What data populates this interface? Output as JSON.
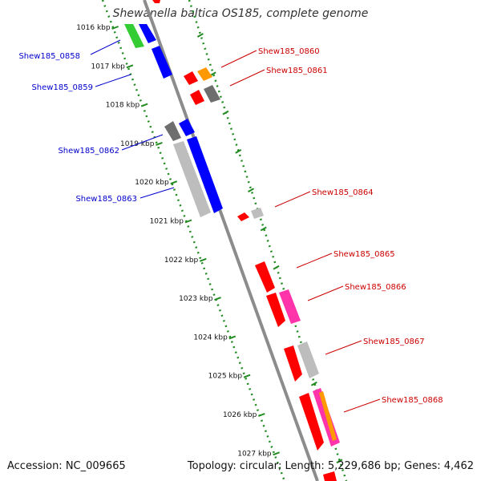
{
  "title": "Shewanella baltica OS185, complete genome",
  "accession": "Accession: NC_009665",
  "summary": "Topology: circular; Length: 5,229,686 bp; Genes: 4,462",
  "colors": {
    "backbone": "#8c8c8c",
    "ticks": "#228b22",
    "label_left": "#0000cc",
    "label_right": "#cc0000",
    "red": "#ff0000",
    "blue": "#0000ff",
    "green": "#33cc33",
    "orange": "#ff9900",
    "dark_gray": "#6e6e6e",
    "light_gray": "#bdbdbd",
    "pink": "#ff33aa"
  },
  "ruler": [
    {
      "label": "1016 kbp"
    },
    {
      "label": "1017 kbp"
    },
    {
      "label": "1018 kbp"
    },
    {
      "label": "1019 kbp"
    },
    {
      "label": "1020 kbp"
    },
    {
      "label": "1021 kbp"
    },
    {
      "label": "1022 kbp"
    },
    {
      "label": "1023 kbp"
    },
    {
      "label": "1024 kbp"
    },
    {
      "label": "1025 kbp"
    },
    {
      "label": "1026 kbp"
    },
    {
      "label": "1027 kbp"
    }
  ],
  "gene_labels": {
    "left": [
      "Shew185_0858",
      "Shew185_0859",
      "Shew185_0862",
      "Shew185_0863"
    ],
    "right": [
      "Shew185_0860",
      "Shew185_0861",
      "Shew185_0864",
      "Shew185_0865",
      "Shew185_0866",
      "Shew185_0867",
      "Shew185_0868"
    ]
  }
}
